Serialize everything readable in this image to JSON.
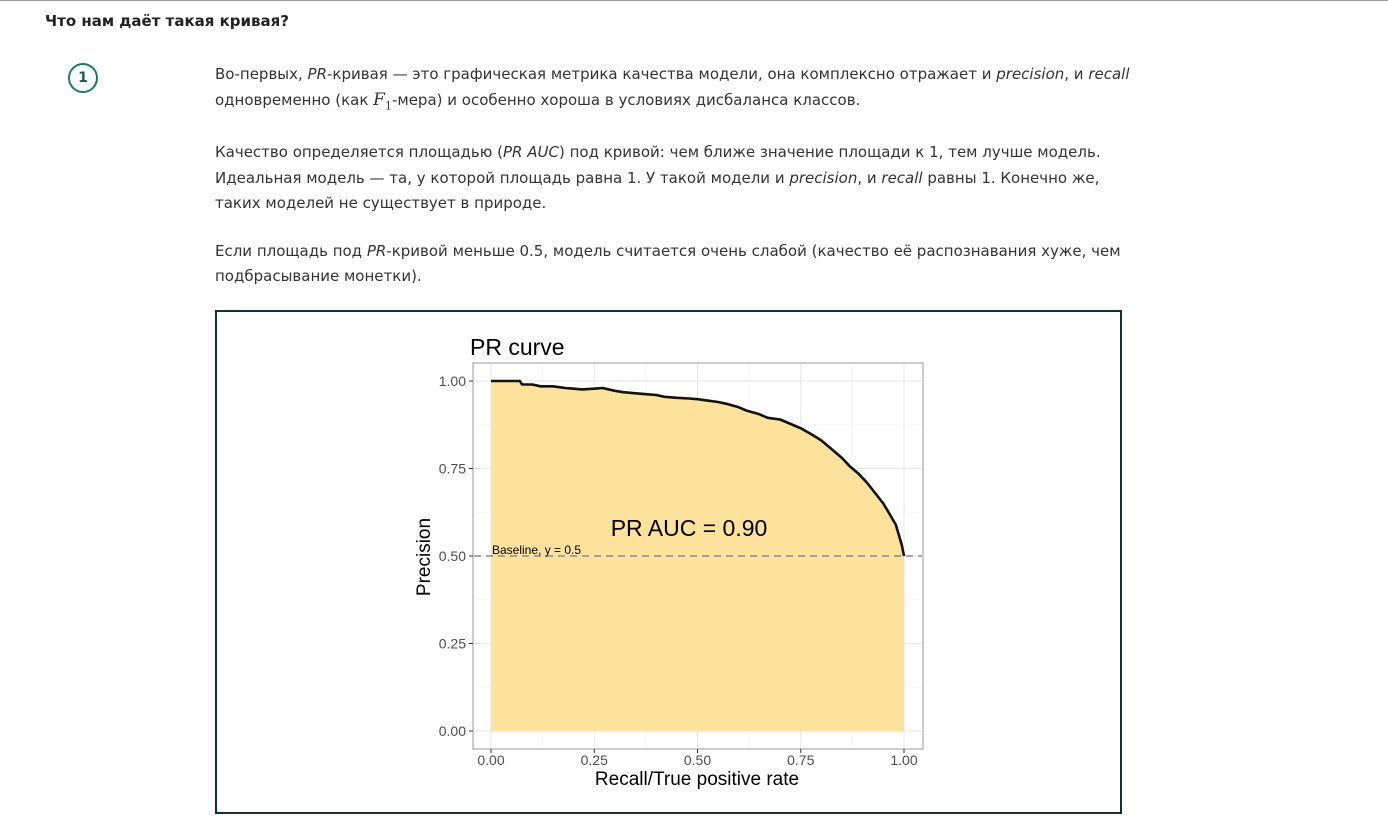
{
  "section": {
    "heading": "Что нам даёт такая кривая?",
    "step_number": "1"
  },
  "paragraphs": {
    "p1": {
      "t1": "Во-первых, ",
      "i1": "PR",
      "t2": "-кривая — это графическая метрика качества модели, она комплексно отражает и ",
      "i2": "precision",
      "t3": ", и ",
      "i3": "recall",
      "t4": " одновременно (как ",
      "math_letter": "F",
      "math_sub": "1",
      "t5": "-мера) и особенно хороша в условиях дисбаланса классов."
    },
    "p2": {
      "t1": "Качество определяется площадью (",
      "i1": "PR AUC",
      "t2": ") под кривой: чем ближе значение площади к 1, тем лучше модель. Идеальная модель — та, у которой площадь равна 1. У такой модели и ",
      "i2": "precision",
      "t3": ", и ",
      "i3": "recall",
      "t4": " равны 1. Конечно же, таких моделей не существует в природе."
    },
    "p3": {
      "t1": "Если площадь под ",
      "i1": "PR",
      "t2": "-кривой меньше 0.5, модель считается очень слабой (качество её распознавания хуже, чем подбрасывание монетки)."
    }
  },
  "colors": {
    "accent": "#1b7a68",
    "figure_border": "#12332e",
    "area_fill": "#fde29b",
    "curve": "#111111"
  },
  "chart_data": {
    "type": "area",
    "title": "PR curve",
    "xlabel": "Recall/True positive rate",
    "ylabel": "Precision",
    "xlim": [
      0,
      1
    ],
    "ylim": [
      0,
      1
    ],
    "x_ticks": [
      "0.00",
      "0.25",
      "0.50",
      "0.75",
      "1.00"
    ],
    "y_ticks": [
      "0.00",
      "0.25",
      "0.50",
      "0.75",
      "1.00"
    ],
    "grid": true,
    "annotation": "PR AUC = 0.90",
    "baseline": {
      "y": 0.5,
      "label": "Baseline, y = 0.5"
    },
    "series": [
      {
        "x": [
          0.0,
          0.02,
          0.05,
          0.07,
          0.075,
          0.1,
          0.12,
          0.15,
          0.18,
          0.2,
          0.22,
          0.25,
          0.27,
          0.3,
          0.32,
          0.35,
          0.38,
          0.4,
          0.42,
          0.45,
          0.48,
          0.5,
          0.52,
          0.55,
          0.57,
          0.6,
          0.62,
          0.65,
          0.67,
          0.7,
          0.72,
          0.75,
          0.78,
          0.8,
          0.82,
          0.85,
          0.87,
          0.89,
          0.91,
          0.93,
          0.95,
          0.96,
          0.97,
          0.98,
          0.985,
          0.99,
          0.995,
          1.0
        ],
        "y": [
          1.0,
          1.0,
          1.0,
          1.0,
          0.99,
          0.99,
          0.985,
          0.985,
          0.98,
          0.978,
          0.976,
          0.978,
          0.98,
          0.972,
          0.968,
          0.965,
          0.962,
          0.96,
          0.955,
          0.952,
          0.95,
          0.948,
          0.945,
          0.94,
          0.935,
          0.925,
          0.915,
          0.905,
          0.895,
          0.89,
          0.88,
          0.865,
          0.845,
          0.83,
          0.81,
          0.78,
          0.755,
          0.735,
          0.71,
          0.68,
          0.65,
          0.63,
          0.61,
          0.59,
          0.57,
          0.55,
          0.53,
          0.5
        ]
      }
    ]
  }
}
